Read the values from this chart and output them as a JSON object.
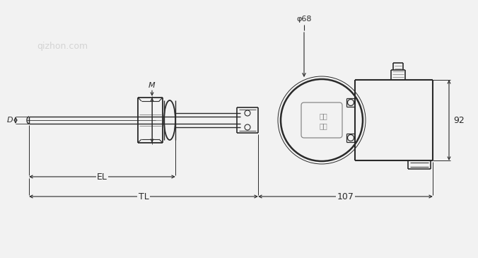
{
  "bg_color": "#f2f2f2",
  "line_color": "#2a2a2a",
  "dim_color": "#2a2a2a",
  "text_color": "#2a2a2a",
  "watermark_color": "#c0c0c0",
  "figsize": [
    6.76,
    3.65
  ],
  "dpi": 100,
  "phi68_label": "φ68",
  "d_label": "D",
  "m_label": "M",
  "el_label": "EL",
  "tl_label": "TL",
  "dim107_label": "107",
  "dim92_label": "92",
  "watermark": "qizhon.com"
}
